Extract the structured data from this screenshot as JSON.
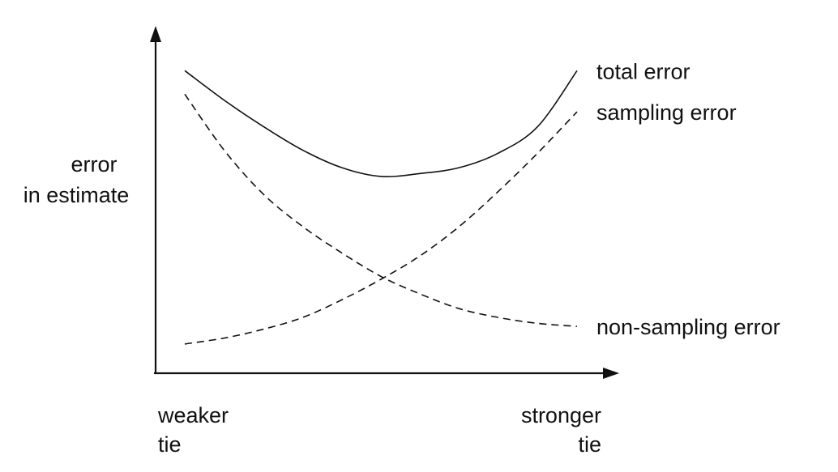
{
  "chart_data": {
    "type": "line",
    "title": "",
    "ylabel_lines": [
      "error",
      "in estimate"
    ],
    "xlabel_left_lines": [
      "weaker",
      "tie"
    ],
    "xlabel_right_lines": [
      "stronger",
      "tie"
    ],
    "x_tick_labels": [],
    "y_tick_labels": [],
    "xlim": [
      0,
      1
    ],
    "ylim": [
      0,
      1
    ],
    "grid": false,
    "legend": "direct labels at right end of each line",
    "x": [
      0.0,
      0.1,
      0.2,
      0.3,
      0.4,
      0.5,
      0.6,
      0.7,
      0.8,
      0.9,
      1.0
    ],
    "series": [
      {
        "name": "total error",
        "style": "solid",
        "values": [
          0.98,
          0.88,
          0.79,
          0.71,
          0.65,
          0.62,
          0.63,
          0.65,
          0.7,
          0.79,
          0.98
        ]
      },
      {
        "name": "sampling error",
        "style": "dashed",
        "values": [
          0.05,
          0.07,
          0.1,
          0.14,
          0.2,
          0.27,
          0.35,
          0.45,
          0.57,
          0.7,
          0.84
        ]
      },
      {
        "name": "non-sampling error",
        "style": "dashed",
        "values": [
          0.9,
          0.71,
          0.56,
          0.45,
          0.36,
          0.28,
          0.22,
          0.17,
          0.14,
          0.12,
          0.11
        ]
      }
    ]
  }
}
